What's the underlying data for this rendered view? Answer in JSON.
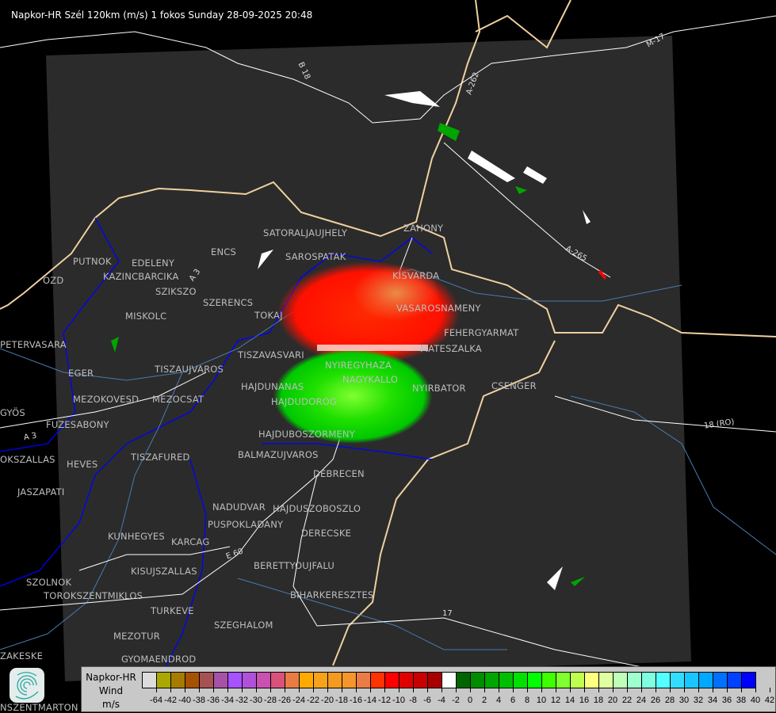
{
  "title": "Napkor-HR Szél 120km (m/s) 1 fokos Sunday 28-09-2025 20:48",
  "towns": [
    "SATORALJAUJHELY",
    "ZAHONY",
    "PUTNOK",
    "EDELENY",
    "ENCS",
    "SAROSPATAK",
    "KAZINCBARCIKA",
    "KISVARDA",
    "SZIKSZO",
    "SZERENCS",
    "TOKAJ",
    "VASAROSNAMENY",
    "MISKOLC",
    "OZD",
    "PETERVASARA",
    "FEHERGYARMAT",
    "MATESZALKA",
    "TISZAVASVARI",
    "NYIREGYHAZA",
    "EGER",
    "TISZAUJVAROS",
    "NAGYKALLO",
    "HAJDUNANAS",
    "NYIRBATOR",
    "CSENGER",
    "MEZOKOVESD",
    "MEZOCSAT",
    "HAJDUDOROG",
    "GYÖS",
    "FUZESABONY",
    "HAJDUBOSZORMENY",
    "TISZAFURED",
    "BALMAZUJVAROS",
    "HEVES",
    "OKSZALLAS",
    "JASZAPATI",
    "DEBRECEN",
    "NADUDVAR",
    "HAJDUSZOBOSZLO",
    "KUNHEGYES",
    "KARCAG",
    "PUSPOKLADANY",
    "DERECSKE",
    "BERETTYOUJFALU",
    "KISUJSZALLAS",
    "SZOLNOK",
    "TOROKSZENTMIKLOS",
    "BIHARKERESZTES",
    "TURKEVE",
    "SZEGHALOM",
    "MEZOTUR",
    "ZAKESKE",
    "GYOMAENDROD",
    "NSZENTMARTON"
  ],
  "roads": [
    "B 18",
    "A-262",
    "M-17",
    "A-265",
    "18 (RO)",
    "A 3",
    "A 3",
    "E 60",
    "17"
  ],
  "legend": {
    "title_lines": [
      "Napkor-HR",
      "Wind",
      "m/s"
    ],
    "labels": [
      "-64",
      "-42",
      "-40",
      "-38",
      "-36",
      "-34",
      "-32",
      "-30",
      "-28",
      "-26",
      "-24",
      "-22",
      "-20",
      "-18",
      "-16",
      "-14",
      "-12",
      "-10",
      "-8",
      "-6",
      "-4",
      "-2",
      "0",
      "2",
      "4",
      "6",
      "8",
      "10",
      "12",
      "14",
      "16",
      "18",
      "20",
      "22",
      "24",
      "26",
      "28",
      "30",
      "32",
      "34",
      "36",
      "38",
      "40",
      "42"
    ],
    "colors": [
      "#dcdcdc",
      "#aaa800",
      "#a67c00",
      "#a65200",
      "#a65252",
      "#a652a6",
      "#a652ff",
      "#b052d9",
      "#c952b0",
      "#d9527c",
      "#e87c44",
      "#ffaa00",
      "#f7a21c",
      "#f59a20",
      "#f5952c",
      "#ea7c48",
      "#ff3300",
      "#ff0000",
      "#e00000",
      "#c80000",
      "#a80000",
      "#ffffff",
      "#006400",
      "#008c00",
      "#00a500",
      "#00be00",
      "#00e100",
      "#00ff00",
      "#40ff00",
      "#80ff30",
      "#bfff50",
      "#ffff80",
      "#dfffa0",
      "#bfffb8",
      "#9fffcf",
      "#7fffdf",
      "#55ffff",
      "#33ddff",
      "#1ac6ff",
      "#00a8ff",
      "#0070ff",
      "#0040ff",
      "#0000ff"
    ]
  },
  "colors": {
    "background": "#000000",
    "radar_area": "#2b2b2b",
    "border_country": "#f0d0a0",
    "border_county": "#0000ff",
    "river": "#4a7ab0",
    "road": "#ffffff"
  }
}
